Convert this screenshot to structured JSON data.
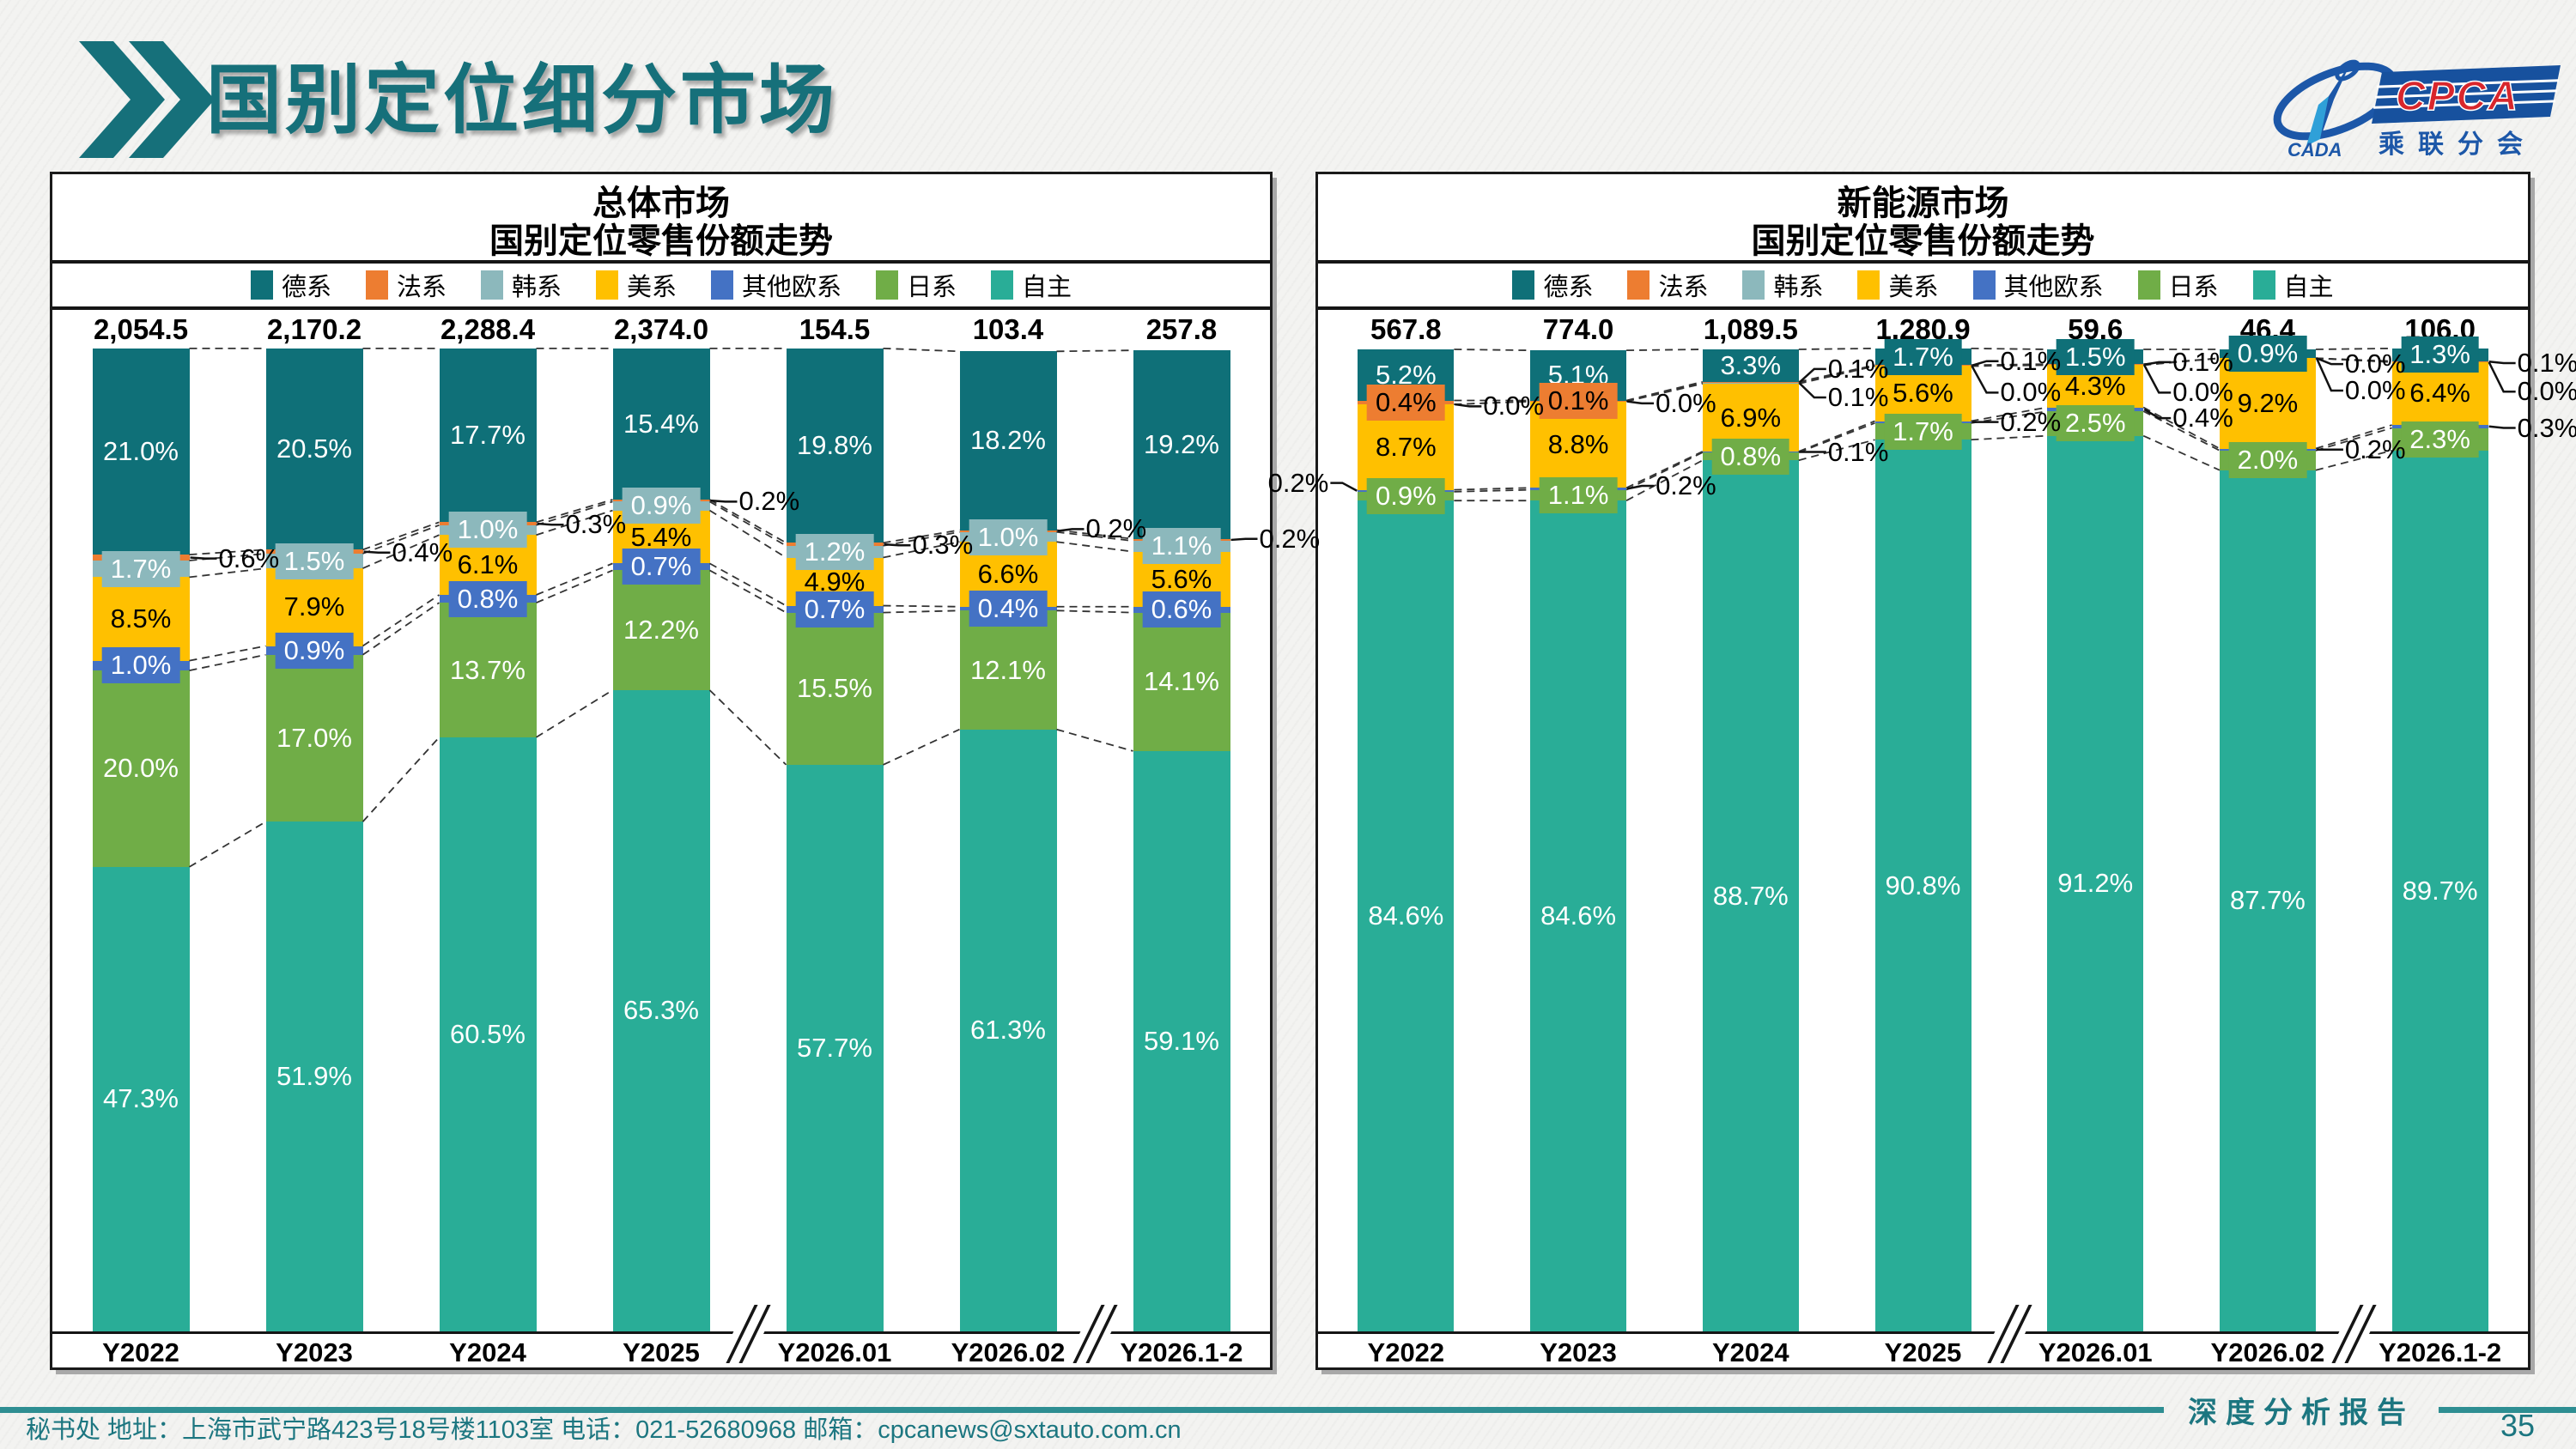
{
  "page": {
    "title": "国别定位细分市场",
    "page_number": "35",
    "footer_text": "秘书处  地址：上海市武宁路423号18号楼1103室 电话：021-52680968  邮箱：cpcanews@sxtauto.com.cn",
    "report_label": "深度分析报告"
  },
  "logo": {
    "cpca": "CPCA",
    "sub_label": "乘联分会",
    "cada": "CADA"
  },
  "colors": {
    "德系": "#0F7078",
    "法系": "#ED7D31",
    "韩系": "#8CB8BC",
    "美系": "#FFC000",
    "其他欧系": "#4472C4",
    "日系": "#70AD47",
    "自主": "#29AD97",
    "accent_teal": "#16707A",
    "footer_teal": "#1C7680",
    "rule_teal": "#2E8E92"
  },
  "series_order_bottom_to_top": [
    "自主",
    "日系",
    "其他欧系",
    "美系",
    "韩系",
    "法系",
    "德系"
  ],
  "legend": [
    "德系",
    "法系",
    "韩系",
    "美系",
    "其他欧系",
    "日系",
    "自主"
  ],
  "chart_data": [
    {
      "type": "bar",
      "stacked": true,
      "units": "percent retail share",
      "title_line1": "总体市场",
      "title_line2": "国别定位零售份额走势",
      "categories": [
        "Y2022",
        "Y2023",
        "Y2024",
        "Y2025",
        "Y2026.01",
        "Y2026.02",
        "Y2026.1-2"
      ],
      "totals": [
        "2,054.5",
        "2,170.2",
        "2,288.4",
        "2,374.0",
        "154.5",
        "103.4",
        "257.8"
      ],
      "ylim": [
        0,
        100
      ],
      "legend_position": "top",
      "series": [
        {
          "name": "德系",
          "values": [
            21.0,
            20.5,
            17.7,
            15.4,
            19.8,
            18.2,
            19.2
          ]
        },
        {
          "name": "法系",
          "values": [
            0.6,
            0.4,
            0.3,
            0.2,
            0.3,
            0.2,
            0.2
          ]
        },
        {
          "name": "韩系",
          "values": [
            1.7,
            1.5,
            1.0,
            0.9,
            1.2,
            1.0,
            1.1
          ]
        },
        {
          "name": "美系",
          "values": [
            8.5,
            7.9,
            6.1,
            5.4,
            4.9,
            6.6,
            5.6
          ]
        },
        {
          "name": "其他欧系",
          "values": [
            1.0,
            0.9,
            0.8,
            0.7,
            0.7,
            0.4,
            0.6
          ]
        },
        {
          "name": "日系",
          "values": [
            20.0,
            17.0,
            13.7,
            12.2,
            15.5,
            12.1,
            14.1
          ]
        },
        {
          "name": "自主",
          "values": [
            47.3,
            51.9,
            60.5,
            65.3,
            57.7,
            61.3,
            59.1
          ]
        }
      ],
      "on_bar": [
        [
          "自主",
          "日系",
          "其他欧系",
          "美系",
          "韩系",
          "德系"
        ],
        [
          "自主",
          "日系",
          "其他欧系",
          "美系",
          "韩系",
          "德系"
        ],
        [
          "自主",
          "日系",
          "其他欧系",
          "美系",
          "韩系",
          "德系"
        ],
        [
          "自主",
          "日系",
          "其他欧系",
          "美系",
          "韩系",
          "德系"
        ],
        [
          "自主",
          "日系",
          "其他欧系",
          "美系",
          "韩系",
          "德系"
        ],
        [
          "自主",
          "日系",
          "其他欧系",
          "美系",
          "韩系",
          "德系"
        ],
        [
          "自主",
          "日系",
          "其他欧系",
          "美系",
          "韩系",
          "德系"
        ]
      ],
      "callouts": [
        {
          "col": 0,
          "series": "法系",
          "side": "right",
          "label_top": 21.3
        },
        {
          "col": 1,
          "series": "法系",
          "side": "right",
          "label_top": 20.7
        },
        {
          "col": 2,
          "series": "法系",
          "side": "right",
          "label_top": 17.85
        },
        {
          "col": 3,
          "series": "法系",
          "side": "right",
          "label_top": 15.5
        },
        {
          "col": 4,
          "series": "法系",
          "side": "right",
          "label_top": 19.95
        },
        {
          "col": 5,
          "series": "法系",
          "side": "right",
          "label_top": 18.3
        },
        {
          "col": 6,
          "series": "法系",
          "side": "right",
          "label_top": 19.3
        }
      ],
      "axis_breaks_after": [
        3,
        5
      ]
    },
    {
      "type": "bar",
      "stacked": true,
      "units": "percent retail share",
      "title_line1": "新能源市场",
      "title_line2": "国别定位零售份额走势",
      "categories": [
        "Y2022",
        "Y2023",
        "Y2024",
        "Y2025",
        "Y2026.01",
        "Y2026.02",
        "Y2026.1-2"
      ],
      "totals": [
        "567.8",
        "774.0",
        "1,089.5",
        "1,280.9",
        "59.6",
        "46.4",
        "106.0"
      ],
      "ylim": [
        0,
        100
      ],
      "legend_position": "top",
      "series": [
        {
          "name": "德系",
          "values": [
            5.2,
            5.1,
            3.3,
            1.7,
            1.5,
            0.9,
            1.3
          ]
        },
        {
          "name": "法系",
          "values": [
            0.4,
            0.1,
            0.1,
            0.1,
            0.1,
            0.0,
            0.1
          ]
        },
        {
          "name": "韩系",
          "values": [
            0.0,
            0.0,
            0.1,
            0.0,
            0.0,
            0.0,
            0.0
          ]
        },
        {
          "name": "美系",
          "values": [
            8.7,
            8.8,
            6.9,
            5.6,
            4.3,
            9.2,
            6.4
          ]
        },
        {
          "name": "其他欧系",
          "values": [
            0.2,
            0.2,
            0.1,
            0.2,
            0.4,
            0.2,
            0.3
          ]
        },
        {
          "name": "日系",
          "values": [
            0.9,
            1.1,
            0.8,
            1.7,
            2.5,
            2.0,
            2.3
          ]
        },
        {
          "name": "自主",
          "values": [
            84.6,
            84.6,
            88.7,
            90.8,
            91.2,
            87.7,
            89.7
          ]
        }
      ],
      "on_bar": [
        [
          "自主",
          "日系",
          "美系",
          "法系",
          "德系"
        ],
        [
          "自主",
          "日系",
          "美系",
          "法系",
          "德系"
        ],
        [
          "自主",
          "日系",
          "美系",
          "德系"
        ],
        [
          "自主",
          "日系",
          "美系",
          "德系"
        ],
        [
          "自主",
          "日系",
          "美系",
          "德系"
        ],
        [
          "自主",
          "日系",
          "美系",
          "德系"
        ],
        [
          "自主",
          "日系",
          "美系",
          "德系"
        ]
      ],
      "callouts": [
        {
          "col": 0,
          "series": "韩系",
          "side": "right",
          "label_top": 5.8
        },
        {
          "col": 0,
          "series": "其他欧系",
          "side": "left",
          "label_top": 13.6
        },
        {
          "col": 1,
          "series": "韩系",
          "side": "right",
          "label_top": 5.5
        },
        {
          "col": 1,
          "series": "其他欧系",
          "side": "right",
          "label_top": 13.9
        },
        {
          "col": 2,
          "series": "法系",
          "side": "right",
          "label_top": 2.0
        },
        {
          "col": 2,
          "series": "韩系",
          "side": "right",
          "label_top": 4.9
        },
        {
          "col": 2,
          "series": "其他欧系",
          "side": "right",
          "label_top": 10.45
        },
        {
          "col": 3,
          "series": "法系",
          "side": "right",
          "label_top": 1.2
        },
        {
          "col": 3,
          "series": "韩系",
          "side": "right",
          "label_top": 4.4
        },
        {
          "col": 3,
          "series": "其他欧系",
          "side": "right",
          "label_top": 7.4
        },
        {
          "col": 4,
          "series": "法系",
          "side": "right",
          "label_top": 1.3
        },
        {
          "col": 4,
          "series": "韩系",
          "side": "right",
          "label_top": 4.4
        },
        {
          "col": 4,
          "series": "其他欧系",
          "side": "right",
          "label_top": 7.0
        },
        {
          "col": 5,
          "series": "法系",
          "side": "right",
          "label_top": 1.5
        },
        {
          "col": 5,
          "series": "韩系",
          "side": "right",
          "label_top": 4.2
        },
        {
          "col": 5,
          "series": "其他欧系",
          "side": "right",
          "label_top": 10.2
        },
        {
          "col": 6,
          "series": "法系",
          "side": "right",
          "label_top": 1.4
        },
        {
          "col": 6,
          "series": "韩系",
          "side": "right",
          "label_top": 4.3
        },
        {
          "col": 6,
          "series": "其他欧系",
          "side": "right",
          "label_top": 8.0
        }
      ],
      "axis_breaks_after": [
        3,
        5
      ]
    }
  ]
}
